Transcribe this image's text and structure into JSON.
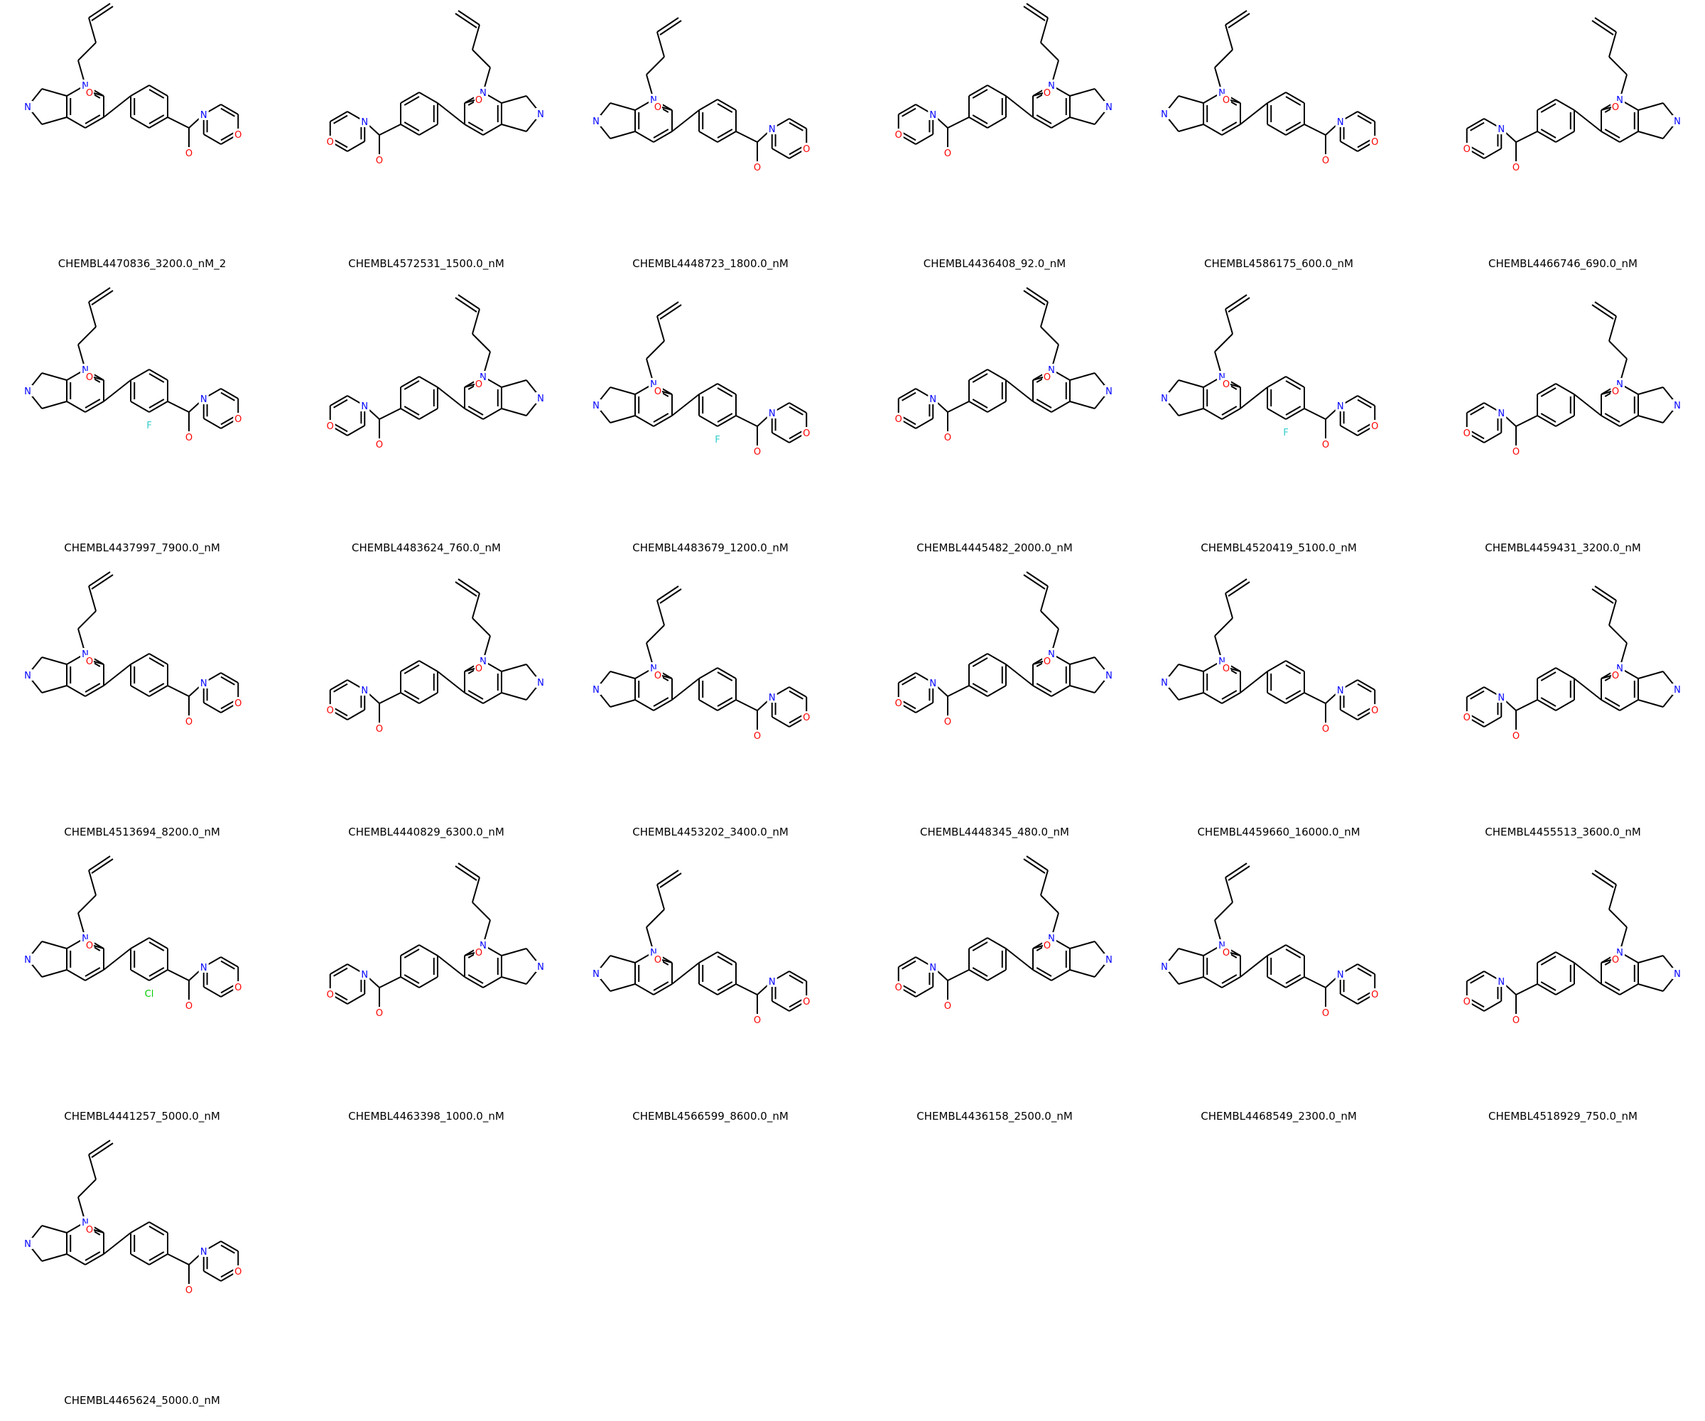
{
  "grid": {
    "columns": 6,
    "molecules": [
      {
        "label": "CHEMBL4470836_3200.0_nM_2",
        "icon": "molecule-structure"
      },
      {
        "label": "CHEMBL4572531_1500.0_nM",
        "icon": "molecule-structure"
      },
      {
        "label": "CHEMBL4448723_1800.0_nM",
        "icon": "molecule-structure"
      },
      {
        "label": "CHEMBL4436408_92.0_nM",
        "icon": "molecule-structure"
      },
      {
        "label": "CHEMBL4586175_600.0_nM",
        "icon": "molecule-structure"
      },
      {
        "label": "CHEMBL4466746_690.0_nM",
        "icon": "molecule-structure"
      },
      {
        "label": "CHEMBL4437997_7900.0_nM",
        "icon": "molecule-structure"
      },
      {
        "label": "CHEMBL4483624_760.0_nM",
        "icon": "molecule-structure"
      },
      {
        "label": "CHEMBL4483679_1200.0_nM",
        "icon": "molecule-structure"
      },
      {
        "label": "CHEMBL4445482_2000.0_nM",
        "icon": "molecule-structure"
      },
      {
        "label": "CHEMBL4520419_5100.0_nM",
        "icon": "molecule-structure"
      },
      {
        "label": "CHEMBL4459431_3200.0_nM",
        "icon": "molecule-structure"
      },
      {
        "label": "CHEMBL4513694_8200.0_nM",
        "icon": "molecule-structure"
      },
      {
        "label": "CHEMBL4440829_6300.0_nM",
        "icon": "molecule-structure"
      },
      {
        "label": "CHEMBL4453202_3400.0_nM",
        "icon": "molecule-structure"
      },
      {
        "label": "CHEMBL4448345_480.0_nM",
        "icon": "molecule-structure"
      },
      {
        "label": "CHEMBL4459660_16000.0_nM",
        "icon": "molecule-structure"
      },
      {
        "label": "CHEMBL4455513_3600.0_nM",
        "icon": "molecule-structure"
      },
      {
        "label": "CHEMBL4441257_5000.0_nM",
        "icon": "molecule-structure"
      },
      {
        "label": "CHEMBL4463398_1000.0_nM",
        "icon": "molecule-structure"
      },
      {
        "label": "CHEMBL4566599_8600.0_nM",
        "icon": "molecule-structure"
      },
      {
        "label": "CHEMBL4436158_2500.0_nM",
        "icon": "molecule-structure"
      },
      {
        "label": "CHEMBL4468549_2300.0_nM",
        "icon": "molecule-structure"
      },
      {
        "label": "CHEMBL4518929_750.0_nM",
        "icon": "molecule-structure"
      },
      {
        "label": "CHEMBL4465624_5000.0_nM",
        "icon": "molecule-structure"
      }
    ]
  },
  "colors": {
    "bond": "#000000",
    "nitrogen": "#0000ff",
    "oxygen": "#ff0000",
    "fluorine": "#33cccc",
    "chlorine": "#00cc00"
  }
}
